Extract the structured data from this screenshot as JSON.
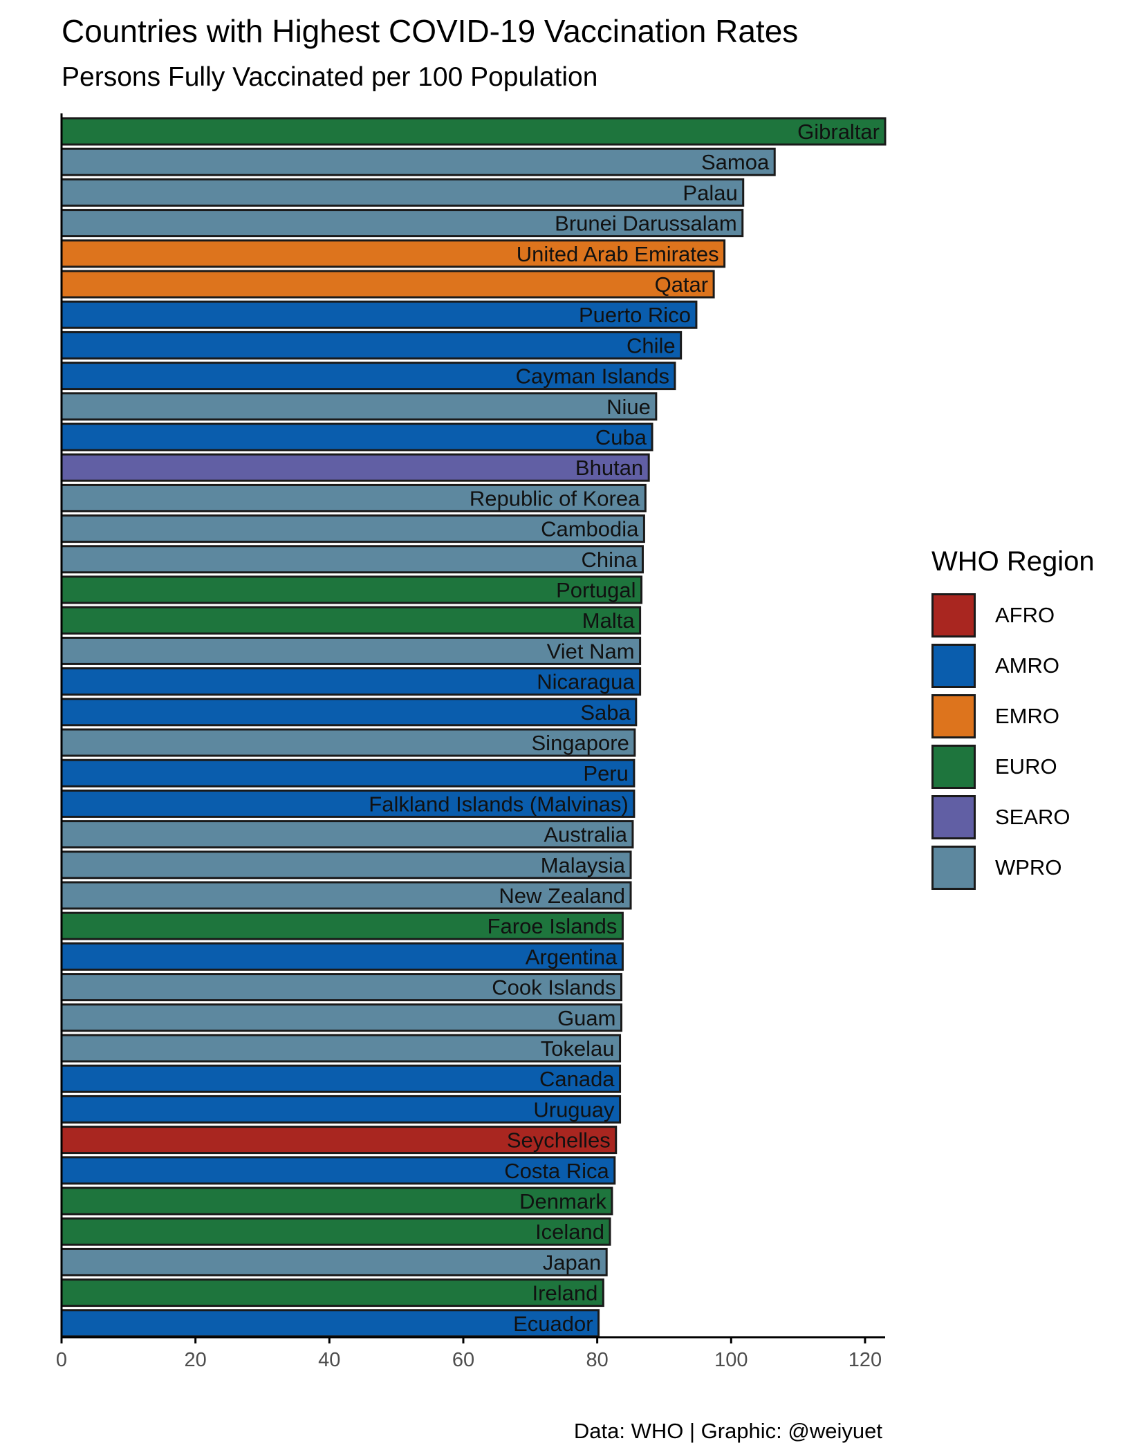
{
  "chart_data": {
    "type": "bar",
    "orientation": "horizontal",
    "title": "Countries with Highest COVID-19 Vaccination Rates",
    "subtitle": "Persons Fully Vaccinated per 100 Population",
    "caption": "Data: WHO | Graphic: @weiyuet",
    "xlim": [
      0,
      123
    ],
    "xticks": [
      0,
      20,
      40,
      60,
      80,
      100,
      120
    ],
    "grid": false,
    "legend_title": "WHO Region",
    "legend_placement": "right",
    "legend": [
      {
        "label": "AFRO",
        "color": "#A92620"
      },
      {
        "label": "AMRO",
        "color": "#0A5DAD"
      },
      {
        "label": "EMRO",
        "color": "#DD741D"
      },
      {
        "label": "EURO",
        "color": "#1E753D"
      },
      {
        "label": "SEARO",
        "color": "#615FA4"
      },
      {
        "label": "WPRO",
        "color": "#5D889F"
      }
    ],
    "bars": [
      {
        "country": "Gibraltar",
        "region": "EURO",
        "value": 123.0
      },
      {
        "country": "Samoa",
        "region": "WPRO",
        "value": 106.5
      },
      {
        "country": "Palau",
        "region": "WPRO",
        "value": 101.8
      },
      {
        "country": "Brunei Darussalam",
        "region": "WPRO",
        "value": 101.7
      },
      {
        "country": "United Arab Emirates",
        "region": "EMRO",
        "value": 99.0
      },
      {
        "country": "Qatar",
        "region": "EMRO",
        "value": 97.4
      },
      {
        "country": "Puerto Rico",
        "region": "AMRO",
        "value": 94.8
      },
      {
        "country": "Chile",
        "region": "AMRO",
        "value": 92.5
      },
      {
        "country": "Cayman Islands",
        "region": "AMRO",
        "value": 91.6
      },
      {
        "country": "Niue",
        "region": "WPRO",
        "value": 88.8
      },
      {
        "country": "Cuba",
        "region": "AMRO",
        "value": 88.2
      },
      {
        "country": "Bhutan",
        "region": "SEARO",
        "value": 87.7
      },
      {
        "country": "Republic of Korea",
        "region": "WPRO",
        "value": 87.2
      },
      {
        "country": "Cambodia",
        "region": "WPRO",
        "value": 87.0
      },
      {
        "country": "China",
        "region": "WPRO",
        "value": 86.8
      },
      {
        "country": "Portugal",
        "region": "EURO",
        "value": 86.6
      },
      {
        "country": "Malta",
        "region": "EURO",
        "value": 86.4
      },
      {
        "country": "Viet Nam",
        "region": "WPRO",
        "value": 86.4
      },
      {
        "country": "Nicaragua",
        "region": "AMRO",
        "value": 86.4
      },
      {
        "country": "Saba",
        "region": "AMRO",
        "value": 85.8
      },
      {
        "country": "Singapore",
        "region": "WPRO",
        "value": 85.6
      },
      {
        "country": "Peru",
        "region": "AMRO",
        "value": 85.5
      },
      {
        "country": "Falkland Islands (Malvinas)",
        "region": "AMRO",
        "value": 85.5
      },
      {
        "country": "Australia",
        "region": "WPRO",
        "value": 85.3
      },
      {
        "country": "Malaysia",
        "region": "WPRO",
        "value": 85.0
      },
      {
        "country": "New Zealand",
        "region": "WPRO",
        "value": 85.0
      },
      {
        "country": "Faroe Islands",
        "region": "EURO",
        "value": 83.8
      },
      {
        "country": "Argentina",
        "region": "AMRO",
        "value": 83.8
      },
      {
        "country": "Cook Islands",
        "region": "WPRO",
        "value": 83.6
      },
      {
        "country": "Guam",
        "region": "WPRO",
        "value": 83.6
      },
      {
        "country": "Tokelau",
        "region": "WPRO",
        "value": 83.4
      },
      {
        "country": "Canada",
        "region": "AMRO",
        "value": 83.4
      },
      {
        "country": "Uruguay",
        "region": "AMRO",
        "value": 83.4
      },
      {
        "country": "Seychelles",
        "region": "AFRO",
        "value": 82.8
      },
      {
        "country": "Costa Rica",
        "region": "AMRO",
        "value": 82.6
      },
      {
        "country": "Denmark",
        "region": "EURO",
        "value": 82.2
      },
      {
        "country": "Iceland",
        "region": "EURO",
        "value": 81.9
      },
      {
        "country": "Japan",
        "region": "WPRO",
        "value": 81.4
      },
      {
        "country": "Ireland",
        "region": "EURO",
        "value": 80.9
      },
      {
        "country": "Ecuador",
        "region": "AMRO",
        "value": 80.2
      }
    ]
  }
}
